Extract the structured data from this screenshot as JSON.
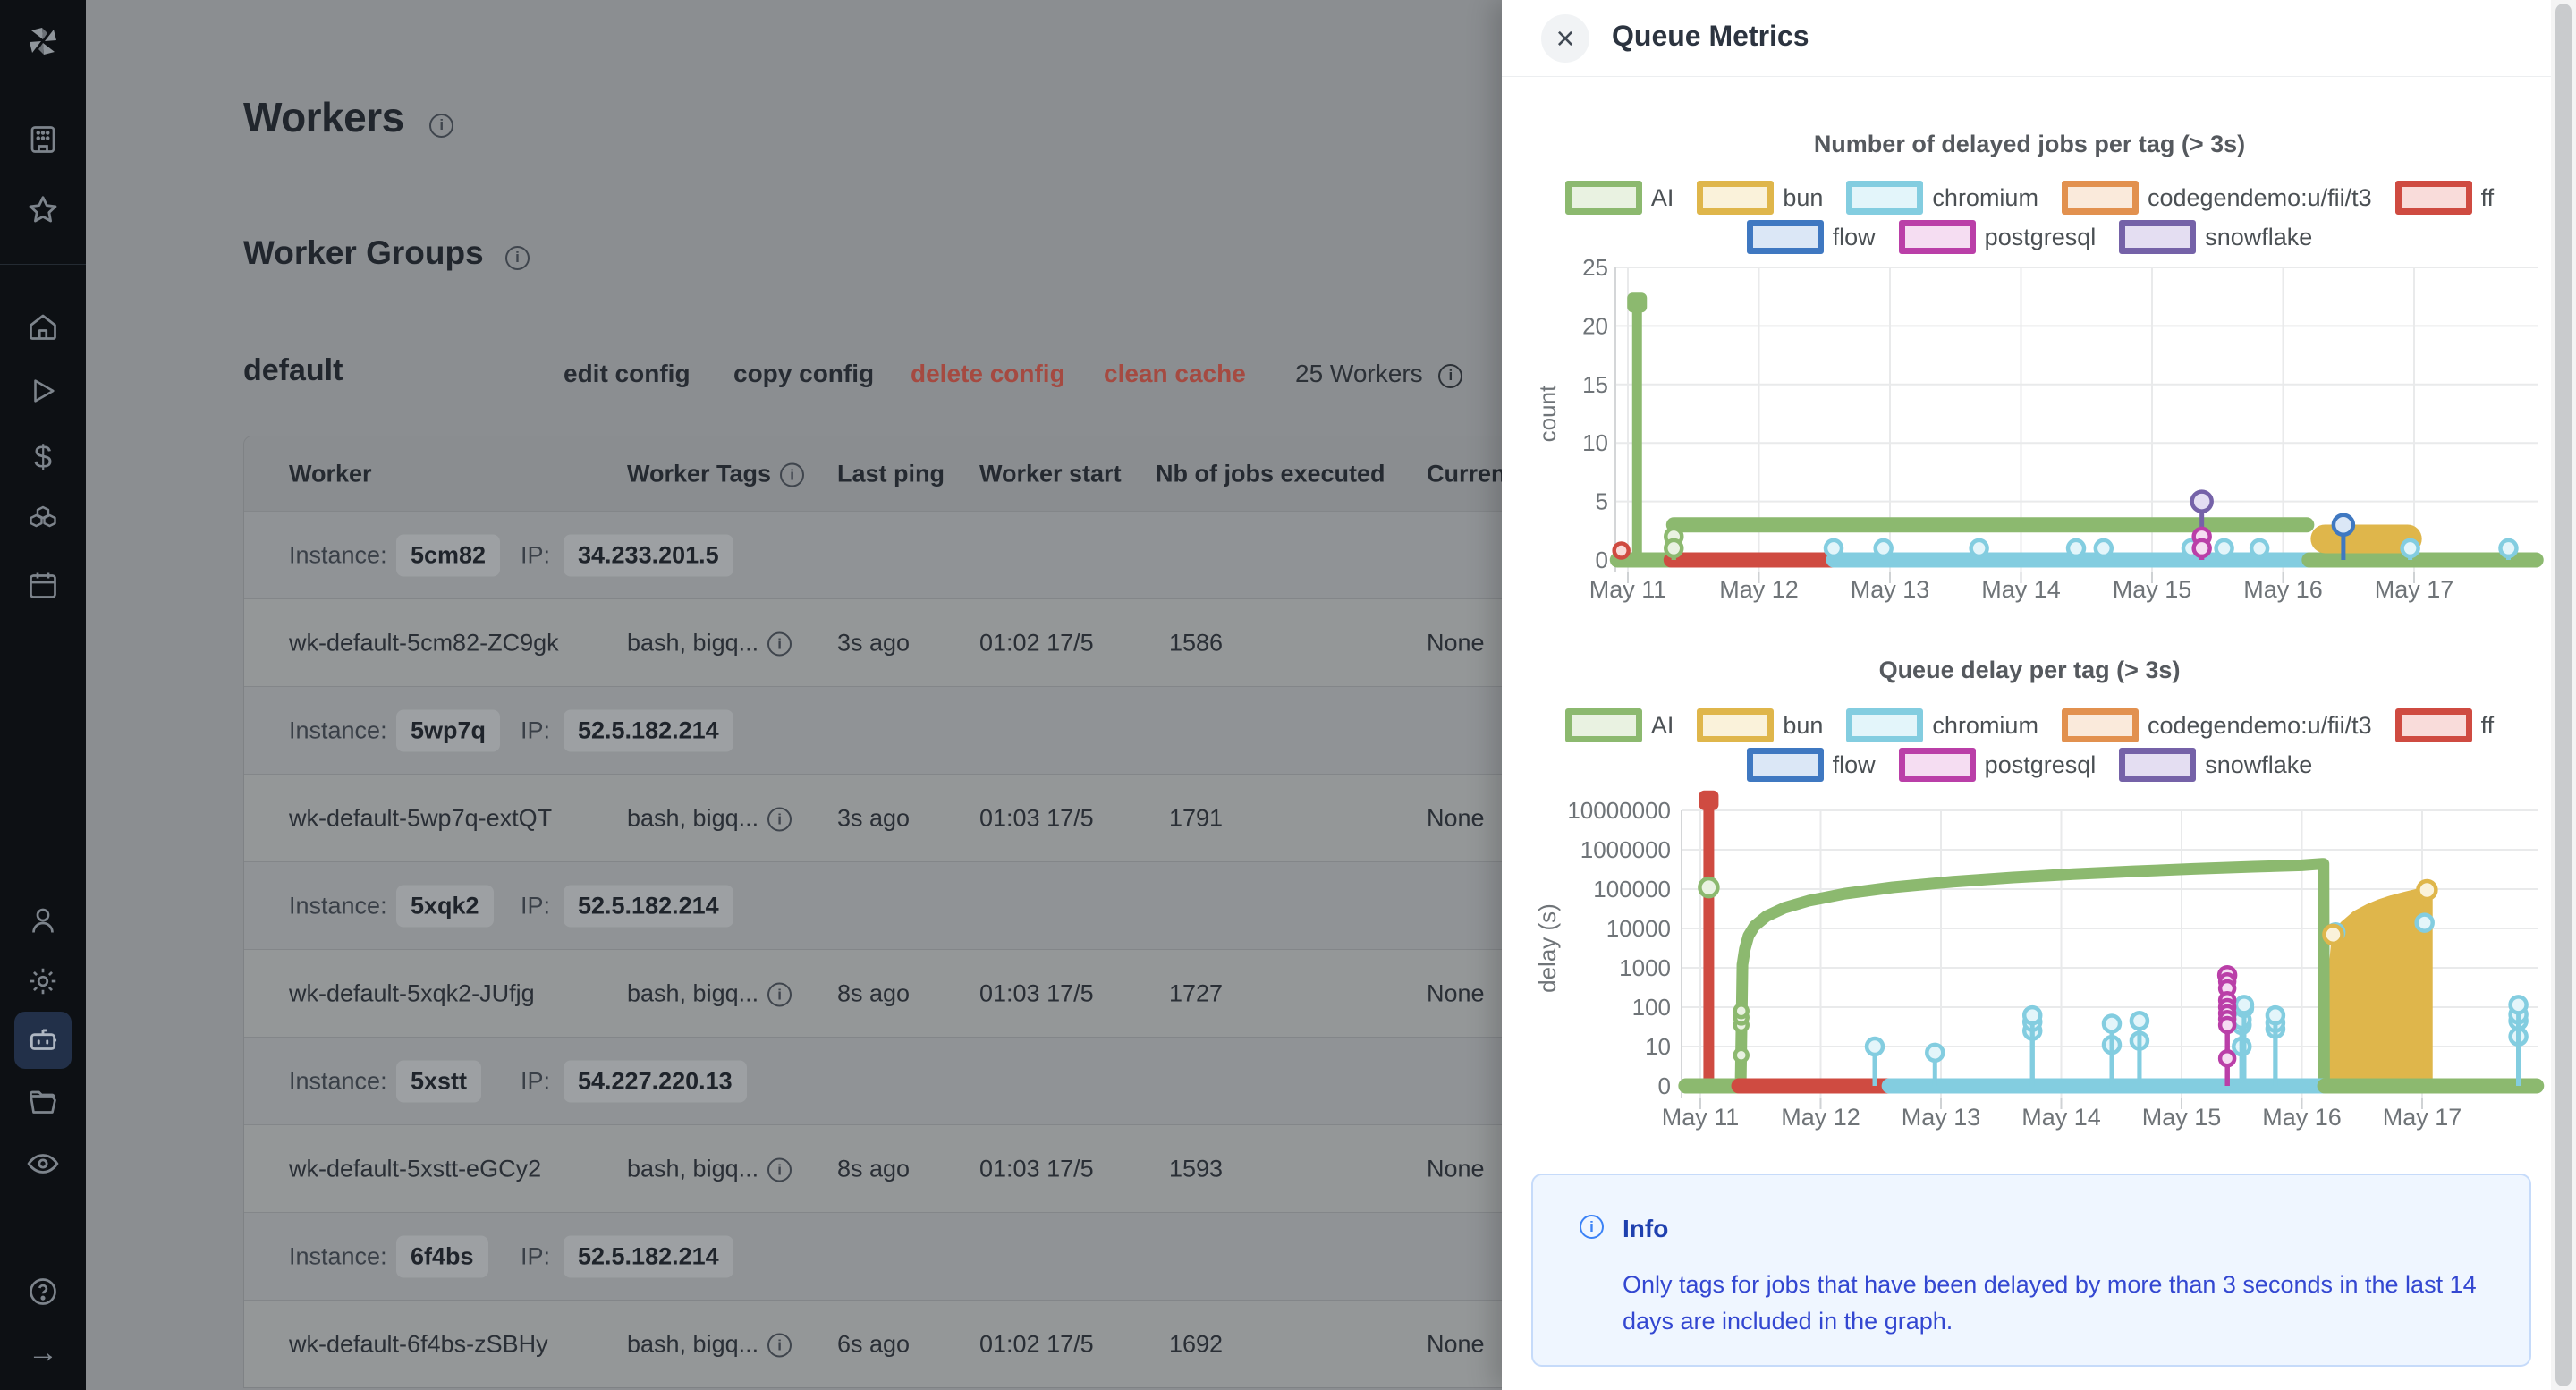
{
  "sidebar": {
    "icons": [
      "windmill-logo",
      "apps",
      "favorites",
      "home",
      "runs",
      "dollar",
      "resources",
      "schedules",
      "users",
      "settings",
      "workers",
      "folders",
      "audit-logs",
      "help",
      "collapse"
    ],
    "active": "workers"
  },
  "page": {
    "title": "Workers",
    "section_title": "Worker Groups"
  },
  "group": {
    "name": "default",
    "actions": {
      "edit": "edit config",
      "copy": "copy config",
      "delete": "delete config",
      "clean": "clean cache"
    },
    "workers_count": "25 Workers"
  },
  "table": {
    "headers": [
      "Worker",
      "Worker Tags",
      "Last ping",
      "Worker start",
      "Nb of jobs executed",
      "Current"
    ],
    "instance_label": "Instance:",
    "ip_label": "IP:",
    "rows": [
      {
        "type": "instance",
        "id": "5cm82",
        "ip": "34.233.201.5"
      },
      {
        "type": "worker",
        "name": "wk-default-5cm82-ZC9gk",
        "tags": "bash, bigq...",
        "last_ping": "3s ago",
        "start": "01:02 17/5",
        "jobs": "1586",
        "current": "None"
      },
      {
        "type": "instance",
        "id": "5wp7q",
        "ip": "52.5.182.214"
      },
      {
        "type": "worker",
        "name": "wk-default-5wp7q-extQT",
        "tags": "bash, bigq...",
        "last_ping": "3s ago",
        "start": "01:03 17/5",
        "jobs": "1791",
        "current": "None"
      },
      {
        "type": "instance",
        "id": "5xqk2",
        "ip": "52.5.182.214"
      },
      {
        "type": "worker",
        "name": "wk-default-5xqk2-JUfjg",
        "tags": "bash, bigq...",
        "last_ping": "8s ago",
        "start": "01:03 17/5",
        "jobs": "1727",
        "current": "None"
      },
      {
        "type": "instance",
        "id": "5xstt",
        "ip": "54.227.220.13"
      },
      {
        "type": "worker",
        "name": "wk-default-5xstt-eGCy2",
        "tags": "bash, bigq...",
        "last_ping": "8s ago",
        "start": "01:03 17/5",
        "jobs": "1593",
        "current": "None"
      },
      {
        "type": "instance",
        "id": "6f4bs",
        "ip": "52.5.182.214"
      },
      {
        "type": "worker",
        "name": "wk-default-6f4bs-zSBHy",
        "tags": "bash, bigq...",
        "last_ping": "6s ago",
        "start": "01:02 17/5",
        "jobs": "1692",
        "current": "None"
      }
    ]
  },
  "drawer": {
    "title": "Queue Metrics",
    "close_label": "×",
    "tags": {
      "AI": {
        "color": "#8cb96f",
        "fill": "#e9f2e1"
      },
      "bun": {
        "color": "#dfb64b",
        "fill": "#faf2da"
      },
      "chromium": {
        "color": "#83cde0",
        "fill": "#e3f5fa"
      },
      "codegendemo:u/fii/t3": {
        "color": "#e2914f",
        "fill": "#faeadb"
      },
      "ff": {
        "color": "#cf4b41",
        "fill": "#f9dcda"
      },
      "flow": {
        "color": "#3f78c1",
        "fill": "#dbe7f6"
      },
      "postgresql": {
        "color": "#ba3fa8",
        "fill": "#f5ddf2"
      },
      "snowflake": {
        "color": "#7562a8",
        "fill": "#e4def2"
      }
    },
    "legend_rows": [
      [
        "AI",
        "bun",
        "chromium",
        "codegendemo:u/fii/t3",
        "ff"
      ],
      [
        "flow",
        "postgresql",
        "snowflake"
      ]
    ],
    "chart_data": [
      {
        "type": "lollipop",
        "title": "Number of delayed jobs per tag (> 3s)",
        "ylabel": "count",
        "yscale": "linear",
        "ylim": [
          0,
          25
        ],
        "yticks": [
          "0",
          "5",
          "10",
          "15",
          "20",
          "25"
        ],
        "xticks": [
          {
            "x": 11,
            "label": "May 11"
          },
          {
            "x": 12,
            "label": "May 12"
          },
          {
            "x": 13,
            "label": "May 13"
          },
          {
            "x": 14,
            "label": "May 14"
          },
          {
            "x": 15,
            "label": "May 15"
          },
          {
            "x": 16,
            "label": "May 16"
          },
          {
            "x": 17,
            "label": "May 17"
          }
        ],
        "bands": [
          {
            "tag": "AI",
            "y": 0,
            "x0": 10.92,
            "x1": 11.33,
            "w": 17
          },
          {
            "tag": "ff",
            "y": 0,
            "x0": 11.33,
            "x1": 12.57,
            "w": 17
          },
          {
            "tag": "chromium",
            "y": 0,
            "x0": 12.57,
            "x1": 16.2,
            "w": 17
          },
          {
            "tag": "AI",
            "y": 0,
            "x0": 16.2,
            "x1": 17.93,
            "w": 17
          },
          {
            "tag": "AI",
            "y": 3,
            "x0": 11.35,
            "x1": 16.18,
            "w": 17
          },
          {
            "tag": "bun",
            "y": 1.8,
            "x0": 16.32,
            "x1": 16.95,
            "w": 32
          }
        ],
        "spikes": [
          {
            "tag": "AI",
            "x": 11.07,
            "y": 22,
            "w": 11
          }
        ],
        "curves": [],
        "areas": [],
        "points": [
          {
            "tag": "chromium",
            "x": 12.57,
            "y": 1,
            "r": 9
          },
          {
            "tag": "chromium",
            "x": 12.95,
            "y": 1,
            "r": 9
          },
          {
            "tag": "chromium",
            "x": 13.68,
            "y": 1,
            "r": 9
          },
          {
            "tag": "chromium",
            "x": 14.42,
            "y": 1,
            "r": 9
          },
          {
            "tag": "chromium",
            "x": 14.63,
            "y": 1,
            "r": 9
          },
          {
            "tag": "chromium",
            "x": 15.3,
            "y": 1,
            "r": 9
          },
          {
            "tag": "chromium",
            "x": 15.55,
            "y": 1,
            "r": 9
          },
          {
            "tag": "chromium",
            "x": 15.82,
            "y": 1,
            "r": 9
          },
          {
            "tag": "chromium",
            "x": 16.97,
            "y": 1,
            "r": 9
          },
          {
            "tag": "chromium",
            "x": 17.72,
            "y": 1,
            "r": 9
          },
          {
            "tag": "ff",
            "x": 10.95,
            "y": 0.8,
            "r": 8,
            "stem": false
          },
          {
            "tag": "AI",
            "x": 11.35,
            "y": 2,
            "r": 9
          },
          {
            "tag": "AI",
            "x": 11.35,
            "y": 1,
            "r": 9
          },
          {
            "tag": "snowflake",
            "x": 15.38,
            "y": 5,
            "r": 11
          },
          {
            "tag": "postgresql",
            "x": 15.38,
            "y": 2,
            "r": 9
          },
          {
            "tag": "postgresql",
            "x": 15.38,
            "y": 1,
            "r": 9
          },
          {
            "tag": "flow",
            "x": 16.46,
            "y": 3,
            "r": 11
          }
        ]
      },
      {
        "type": "lollipop",
        "title": "Queue delay per tag (> 3s)",
        "ylabel": "delay (s)",
        "yscale": "log",
        "yticks": [
          "0",
          "10",
          "100",
          "1000",
          "10000",
          "100000",
          "1000000",
          "10000000"
        ],
        "xticks": [
          {
            "x": 11,
            "label": "May 11"
          },
          {
            "x": 12,
            "label": "May 12"
          },
          {
            "x": 13,
            "label": "May 13"
          },
          {
            "x": 14,
            "label": "May 14"
          },
          {
            "x": 15,
            "label": "May 15"
          },
          {
            "x": 16,
            "label": "May 16"
          },
          {
            "x": 17,
            "label": "May 17"
          }
        ],
        "bands": [
          {
            "tag": "AI",
            "y": 0,
            "x0": 10.88,
            "x1": 11.32,
            "w": 17
          },
          {
            "tag": "ff",
            "y": 0,
            "x0": 11.32,
            "x1": 12.57,
            "w": 17
          },
          {
            "tag": "chromium",
            "y": 0,
            "x0": 12.57,
            "x1": 16.19,
            "w": 17
          },
          {
            "tag": "AI",
            "y": 0,
            "x0": 16.19,
            "x1": 17.95,
            "w": 17
          }
        ],
        "spikes": [
          {
            "tag": "ff",
            "x": 11.07,
            "y": 18000000,
            "w": 12
          }
        ],
        "curves": [
          {
            "tag": "AI",
            "w": 13,
            "points": [
              [
                11.335,
                1
              ],
              [
                11.35,
                1200
              ],
              [
                11.37,
                3000
              ],
              [
                11.4,
                6500
              ],
              [
                11.45,
                11500
              ],
              [
                11.55,
                20500
              ],
              [
                11.7,
                33500
              ],
              [
                11.9,
                50500
              ],
              [
                12.2,
                76500
              ],
              [
                12.6,
                111000
              ],
              [
                13.1,
                154000
              ],
              [
                13.6,
                197000
              ],
              [
                14.1,
                240000
              ],
              [
                14.6,
                283000
              ],
              [
                15.1,
                326000
              ],
              [
                15.6,
                369000
              ],
              [
                16.0,
                403000
              ],
              [
                16.17,
                440000
              ],
              [
                16.18,
                440000
              ],
              [
                16.185,
                1
              ]
            ]
          }
        ],
        "areas": [
          {
            "tag": "bun",
            "points": [
              [
                16.25,
                400
              ],
              [
                16.28,
                4500
              ],
              [
                16.35,
                12000
              ],
              [
                16.45,
                22000
              ],
              [
                16.55,
                32000
              ],
              [
                16.65,
                43000
              ],
              [
                16.75,
                54000
              ],
              [
                16.85,
                65000
              ],
              [
                16.95,
                77000
              ],
              [
                17.02,
                87000
              ],
              [
                17.05,
                93000
              ]
            ]
          }
        ],
        "points": [
          {
            "tag": "AI",
            "x": 11.07,
            "y": 110000,
            "r": 10,
            "stem": false
          },
          {
            "tag": "AI",
            "x": 11.34,
            "y": 6,
            "r": 7,
            "stem": false
          },
          {
            "tag": "AI",
            "x": 11.34,
            "y": 35,
            "r": 7,
            "stem": false
          },
          {
            "tag": "AI",
            "x": 11.34,
            "y": 55,
            "r": 7,
            "stem": false
          },
          {
            "tag": "AI",
            "x": 11.34,
            "y": 80,
            "r": 7,
            "stem": false
          },
          {
            "tag": "chromium",
            "x": 12.45,
            "y": 10,
            "r": 9
          },
          {
            "tag": "chromium",
            "x": 12.95,
            "y": 7,
            "r": 9
          },
          {
            "tag": "chromium",
            "x": 13.76,
            "y": 25,
            "r": 9
          },
          {
            "tag": "chromium",
            "x": 13.76,
            "y": 42,
            "r": 9
          },
          {
            "tag": "chromium",
            "x": 13.76,
            "y": 62,
            "r": 9
          },
          {
            "tag": "chromium",
            "x": 14.42,
            "y": 11,
            "r": 9
          },
          {
            "tag": "chromium",
            "x": 14.42,
            "y": 38,
            "r": 9
          },
          {
            "tag": "chromium",
            "x": 14.65,
            "y": 14,
            "r": 9
          },
          {
            "tag": "chromium",
            "x": 14.65,
            "y": 45,
            "r": 9
          },
          {
            "tag": "chromium",
            "x": 15.5,
            "y": 10,
            "r": 9
          },
          {
            "tag": "chromium",
            "x": 15.5,
            "y": 35,
            "r": 9
          },
          {
            "tag": "chromium",
            "x": 15.5,
            "y": 48,
            "r": 9
          },
          {
            "tag": "chromium",
            "x": 15.52,
            "y": 95,
            "r": 9
          },
          {
            "tag": "chromium",
            "x": 15.52,
            "y": 115,
            "r": 9
          },
          {
            "tag": "chromium",
            "x": 15.78,
            "y": 28,
            "r": 9
          },
          {
            "tag": "chromium",
            "x": 15.78,
            "y": 40,
            "r": 9
          },
          {
            "tag": "chromium",
            "x": 15.78,
            "y": 62,
            "r": 9
          },
          {
            "tag": "chromium",
            "x": 16.28,
            "y": 8000,
            "r": 9,
            "stem": false
          },
          {
            "tag": "chromium",
            "x": 17.02,
            "y": 14000,
            "r": 9,
            "stem": false
          },
          {
            "tag": "chromium",
            "x": 17.8,
            "y": 18,
            "r": 9
          },
          {
            "tag": "chromium",
            "x": 17.8,
            "y": 45,
            "r": 9
          },
          {
            "tag": "chromium",
            "x": 17.8,
            "y": 65,
            "r": 9
          },
          {
            "tag": "chromium",
            "x": 17.8,
            "y": 115,
            "r": 9
          },
          {
            "tag": "postgresql",
            "x": 15.38,
            "y": 650,
            "r": 9
          },
          {
            "tag": "postgresql",
            "x": 15.38,
            "y": 450,
            "r": 8
          },
          {
            "tag": "postgresql",
            "x": 15.38,
            "y": 300,
            "r": 8
          },
          {
            "tag": "postgresql",
            "x": 15.38,
            "y": 150,
            "r": 8
          },
          {
            "tag": "postgresql",
            "x": 15.38,
            "y": 100,
            "r": 8
          },
          {
            "tag": "postgresql",
            "x": 15.38,
            "y": 70,
            "r": 8
          },
          {
            "tag": "postgresql",
            "x": 15.38,
            "y": 50,
            "r": 8
          },
          {
            "tag": "postgresql",
            "x": 15.38,
            "y": 35,
            "r": 8
          },
          {
            "tag": "postgresql",
            "x": 15.38,
            "y": 5,
            "r": 8
          },
          {
            "tag": "bun",
            "x": 16.26,
            "y": 7000,
            "r": 10,
            "stem": false
          },
          {
            "tag": "bun",
            "x": 17.04,
            "y": 95000,
            "r": 10,
            "stem": false
          }
        ]
      }
    ],
    "info": {
      "title": "Info",
      "body": "Only tags for jobs that have been delayed by more than 3 seconds in the last 14 days are included in the graph."
    }
  }
}
